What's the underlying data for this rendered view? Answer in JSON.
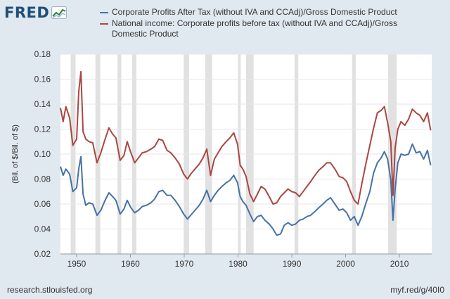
{
  "brand": {
    "logo_text": "FRED",
    "source_link": "research.stlouisfed.org",
    "short_link": "myf.red/g/40I0"
  },
  "colors": {
    "background": "#e1e9f0",
    "plot_background": "#ffffff",
    "recession": "#e1e1e1",
    "gridline": "#e6e6e6",
    "series_blue": "#4572a7",
    "series_red": "#aa4643"
  },
  "chart_data": {
    "type": "line",
    "title": "",
    "xlabel": "",
    "ylabel": "(Bil. of $/Bil. of $)",
    "xlim": [
      1947,
      2016
    ],
    "ylim": [
      0.02,
      0.18
    ],
    "yticks": [
      0.02,
      0.04,
      0.06,
      0.08,
      0.1,
      0.12,
      0.14,
      0.16,
      0.18
    ],
    "ytick_labels": [
      "0.02",
      "0.04",
      "0.06",
      "0.08",
      "0.10",
      "0.12",
      "0.14",
      "0.16",
      "0.18"
    ],
    "xticks": [
      1950,
      1960,
      1970,
      1980,
      1990,
      2000,
      2010
    ],
    "xtick_labels": [
      "1950",
      "1960",
      "1970",
      "1980",
      "1990",
      "2000",
      "2010"
    ],
    "grid": true,
    "legend_position": "top",
    "recessions": [
      [
        1948.9,
        1949.8
      ],
      [
        1953.5,
        1954.4
      ],
      [
        1957.6,
        1958.3
      ],
      [
        1960.3,
        1961.1
      ],
      [
        1969.9,
        1970.9
      ],
      [
        1973.9,
        1975.2
      ],
      [
        1980.0,
        1980.5
      ],
      [
        1981.5,
        1982.9
      ],
      [
        1990.5,
        1991.2
      ],
      [
        2001.2,
        2001.9
      ],
      [
        2007.9,
        2009.5
      ]
    ],
    "series": [
      {
        "name": "Corporate Profits After Tax (without IVA and CCAdj)/Gross Domestic Product",
        "color": "#4572a7",
        "x": [
          1947,
          1947.5,
          1948,
          1948.7,
          1949.3,
          1950,
          1950.4,
          1950.8,
          1951.2,
          1951.7,
          1952.3,
          1953,
          1953.8,
          1954.5,
          1955.3,
          1956,
          1956.7,
          1957.3,
          1958.1,
          1958.8,
          1959.4,
          1960.1,
          1960.8,
          1961.5,
          1962.2,
          1963,
          1963.8,
          1964.5,
          1965.3,
          1966,
          1966.8,
          1967.5,
          1968.3,
          1969.1,
          1969.9,
          1970.6,
          1971.2,
          1972,
          1972.8,
          1973.5,
          1974.2,
          1974.9,
          1975.6,
          1976.3,
          1977,
          1977.8,
          1978.5,
          1979.2,
          1979.9,
          1980.4,
          1980.9,
          1981.5,
          1982.2,
          1982.9,
          1983.6,
          1984.3,
          1985,
          1985.8,
          1986.5,
          1987.2,
          1987.9,
          1988.6,
          1989.3,
          1990,
          1990.7,
          1991.4,
          1992.1,
          1992.8,
          1993.5,
          1994.3,
          1995,
          1995.8,
          1996.5,
          1997.2,
          1998,
          1998.8,
          1999.5,
          2000.2,
          2000.9,
          2001.6,
          2002.3,
          2003,
          2003.8,
          2004.5,
          2005.2,
          2005.9,
          2006.6,
          2007.2,
          2007.8,
          2008.4,
          2008.8,
          2009.2,
          2009.7,
          2010.3,
          2011,
          2011.7,
          2012.4,
          2013.1,
          2013.8,
          2014.5,
          2015.2,
          2015.8
        ],
        "y": [
          0.09,
          0.083,
          0.088,
          0.084,
          0.07,
          0.073,
          0.088,
          0.098,
          0.068,
          0.059,
          0.061,
          0.06,
          0.051,
          0.055,
          0.063,
          0.069,
          0.066,
          0.063,
          0.052,
          0.056,
          0.063,
          0.057,
          0.053,
          0.055,
          0.058,
          0.059,
          0.061,
          0.064,
          0.07,
          0.071,
          0.067,
          0.067,
          0.063,
          0.058,
          0.052,
          0.048,
          0.051,
          0.055,
          0.059,
          0.064,
          0.071,
          0.062,
          0.067,
          0.071,
          0.074,
          0.077,
          0.079,
          0.083,
          0.077,
          0.066,
          0.062,
          0.059,
          0.052,
          0.046,
          0.05,
          0.051,
          0.047,
          0.044,
          0.04,
          0.035,
          0.036,
          0.043,
          0.045,
          0.043,
          0.044,
          0.047,
          0.048,
          0.05,
          0.051,
          0.054,
          0.057,
          0.06,
          0.063,
          0.065,
          0.06,
          0.055,
          0.056,
          0.053,
          0.047,
          0.05,
          0.043,
          0.05,
          0.061,
          0.07,
          0.085,
          0.093,
          0.097,
          0.102,
          0.096,
          0.079,
          0.047,
          0.072,
          0.093,
          0.1,
          0.099,
          0.1,
          0.108,
          0.101,
          0.102,
          0.096,
          0.103,
          0.091
        ]
      },
      {
        "name": "National income: Corporate profits before tax (without IVA and CCAdj)/Gross Domestic Product",
        "color": "#aa4643",
        "x": [
          1947,
          1947.5,
          1948,
          1948.7,
          1949.3,
          1950,
          1950.4,
          1950.8,
          1951.2,
          1951.7,
          1952.3,
          1953,
          1953.8,
          1954.5,
          1955.3,
          1956,
          1956.7,
          1957.3,
          1958.1,
          1958.8,
          1959.4,
          1960.1,
          1960.8,
          1961.5,
          1962.2,
          1963,
          1963.8,
          1964.5,
          1965.3,
          1966,
          1966.8,
          1967.5,
          1968.3,
          1969.1,
          1969.9,
          1970.6,
          1971.2,
          1972,
          1972.8,
          1973.5,
          1974.2,
          1974.9,
          1975.6,
          1976.3,
          1977,
          1977.8,
          1978.5,
          1979.2,
          1979.9,
          1980.4,
          1980.9,
          1981.5,
          1982.2,
          1982.9,
          1983.6,
          1984.3,
          1985,
          1985.8,
          1986.5,
          1987.2,
          1987.9,
          1988.6,
          1989.3,
          1990,
          1990.7,
          1991.4,
          1992.1,
          1992.8,
          1993.5,
          1994.3,
          1995,
          1995.8,
          1996.5,
          1997.2,
          1998,
          1998.8,
          1999.5,
          2000.2,
          2000.9,
          2001.6,
          2002.3,
          2003,
          2003.8,
          2004.5,
          2005.2,
          2005.9,
          2006.6,
          2007.2,
          2007.8,
          2008.4,
          2008.8,
          2009.2,
          2009.7,
          2010.3,
          2011,
          2011.7,
          2012.4,
          2013.1,
          2013.8,
          2014.5,
          2015.2,
          2015.8
        ],
        "y": [
          0.137,
          0.126,
          0.138,
          0.129,
          0.107,
          0.112,
          0.15,
          0.166,
          0.118,
          0.112,
          0.11,
          0.109,
          0.093,
          0.101,
          0.112,
          0.121,
          0.116,
          0.113,
          0.095,
          0.099,
          0.11,
          0.101,
          0.093,
          0.097,
          0.101,
          0.102,
          0.104,
          0.106,
          0.112,
          0.111,
          0.103,
          0.101,
          0.097,
          0.092,
          0.084,
          0.08,
          0.084,
          0.088,
          0.092,
          0.097,
          0.104,
          0.083,
          0.096,
          0.101,
          0.106,
          0.11,
          0.113,
          0.117,
          0.108,
          0.091,
          0.088,
          0.082,
          0.068,
          0.062,
          0.068,
          0.074,
          0.072,
          0.066,
          0.06,
          0.061,
          0.066,
          0.069,
          0.072,
          0.07,
          0.069,
          0.066,
          0.07,
          0.074,
          0.078,
          0.083,
          0.087,
          0.09,
          0.093,
          0.093,
          0.088,
          0.082,
          0.081,
          0.078,
          0.07,
          0.063,
          0.06,
          0.076,
          0.093,
          0.107,
          0.121,
          0.133,
          0.135,
          0.138,
          0.125,
          0.11,
          0.067,
          0.105,
          0.12,
          0.126,
          0.123,
          0.128,
          0.136,
          0.133,
          0.131,
          0.126,
          0.133,
          0.119
        ]
      }
    ]
  }
}
